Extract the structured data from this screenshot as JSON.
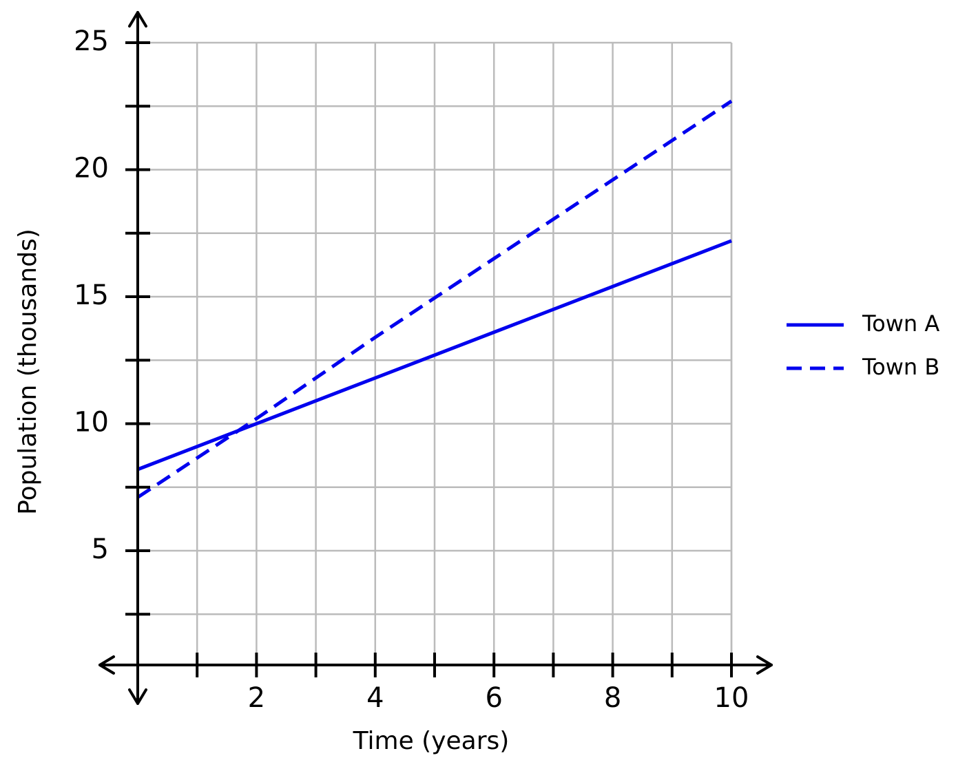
{
  "chart_data": {
    "type": "line",
    "xlabel": "Time (years)",
    "ylabel": "Population (thousands)",
    "x": [
      0,
      2,
      4,
      6,
      8,
      10
    ],
    "series": [
      {
        "name": "Town A",
        "color": "#0000ee",
        "dash": "solid",
        "values": [
          8.2,
          10,
          11.8,
          13.6,
          15.4,
          17.2
        ]
      },
      {
        "name": "Town B",
        "color": "#0000ee",
        "dash": "dashed",
        "values": [
          7.1,
          10.2,
          13.4,
          16.5,
          19.6,
          22.7
        ]
      }
    ],
    "xlim": [
      0,
      10
    ],
    "xticks": [
      2,
      4,
      6,
      8,
      10
    ],
    "xticks_minor": [
      1,
      3,
      5,
      7,
      9
    ],
    "ylim": [
      0.5,
      25
    ],
    "yticks": [
      5,
      10,
      15,
      20,
      25
    ],
    "yticks_minor": [
      2.5,
      7.5,
      12.5,
      17.5,
      22.5
    ],
    "grid": true,
    "legend": "right"
  }
}
